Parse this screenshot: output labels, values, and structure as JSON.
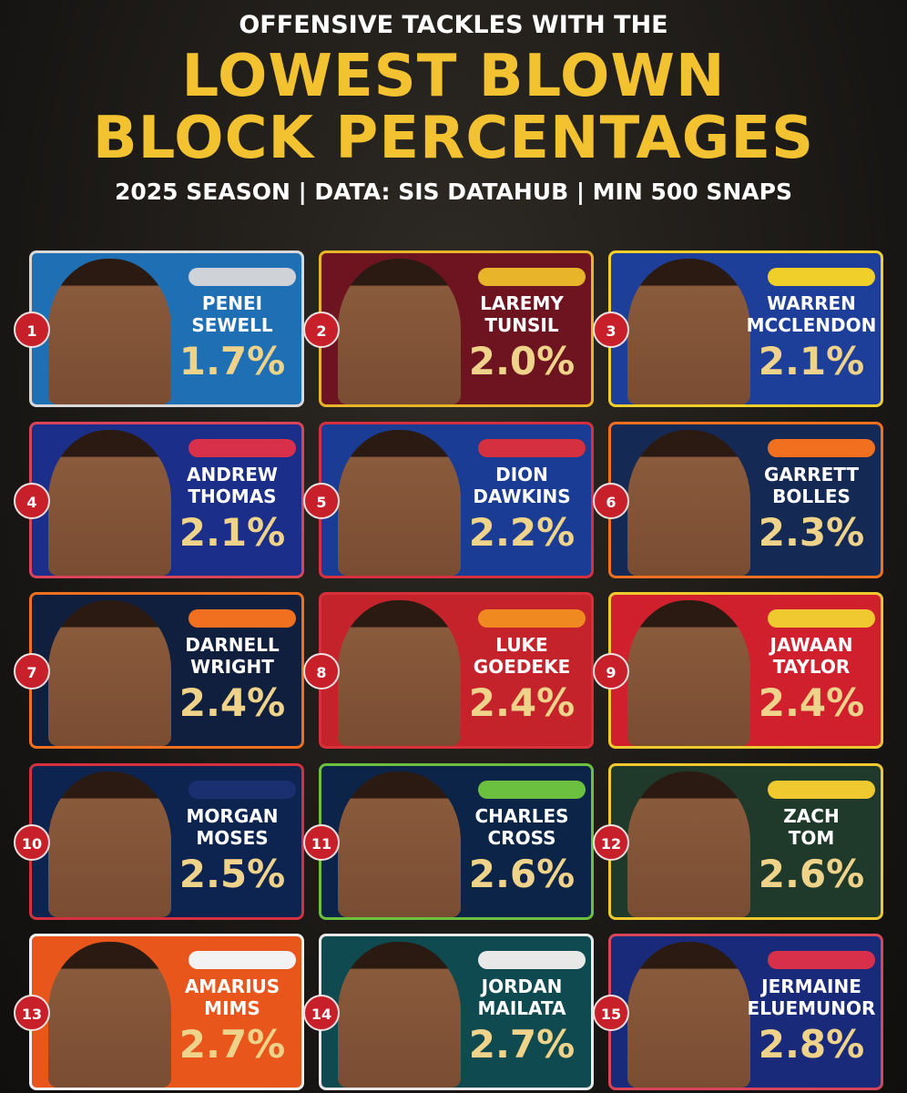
{
  "header": {
    "kicker": "OFFENSIVE TACKLES WITH THE",
    "title_lines": [
      "LOWEST BLOWN",
      "BLOCK PERCENTAGES"
    ],
    "subtitle": "2025 SEASON | DATA: SIS DATAHUB | MIN 500 SNAPS"
  },
  "players": [
    {
      "rank": 1,
      "first": "PENEI",
      "last": "SEWELL",
      "value": "1.7%"
    },
    {
      "rank": 2,
      "first": "LAREMY",
      "last": "TUNSIL",
      "value": "2.0%"
    },
    {
      "rank": 3,
      "first": "WARREN",
      "last": "MCCLENDON",
      "value": "2.1%"
    },
    {
      "rank": 4,
      "first": "ANDREW",
      "last": "THOMAS",
      "value": "2.1%"
    },
    {
      "rank": 5,
      "first": "DION",
      "last": "DAWKINS",
      "value": "2.2%"
    },
    {
      "rank": 6,
      "first": "GARRETT",
      "last": "BOLLES",
      "value": "2.3%"
    },
    {
      "rank": 7,
      "first": "DARNELL",
      "last": "WRIGHT",
      "value": "2.4%"
    },
    {
      "rank": 8,
      "first": "LUKE",
      "last": "GOEDEKE",
      "value": "2.4%"
    },
    {
      "rank": 9,
      "first": "JAWAAN",
      "last": "TAYLOR",
      "value": "2.4%"
    },
    {
      "rank": 10,
      "first": "MORGAN",
      "last": "MOSES",
      "value": "2.5%"
    },
    {
      "rank": 11,
      "first": "CHARLES",
      "last": "CROSS",
      "value": "2.6%"
    },
    {
      "rank": 12,
      "first": "ZACH",
      "last": "TOM",
      "value": "2.6%"
    },
    {
      "rank": 13,
      "first": "AMARIUS",
      "last": "MIMS",
      "value": "2.7%"
    },
    {
      "rank": 14,
      "first": "JORDAN",
      "last": "MAILATA",
      "value": "2.7%"
    },
    {
      "rank": 15,
      "first": "JERMAINE",
      "last": "ELUEMUNOR",
      "value": "2.8%"
    }
  ]
}
